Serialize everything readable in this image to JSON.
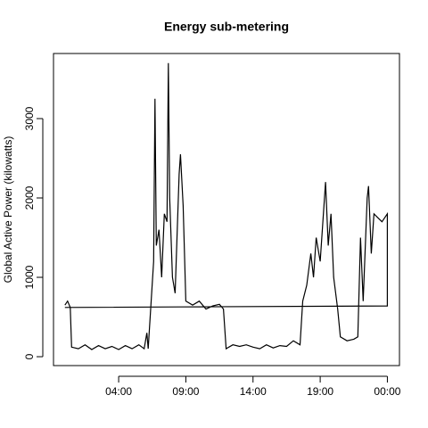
{
  "chart_data": {
    "type": "line",
    "title": "Energy sub-metering",
    "y_label": "Global Active Power (kilowatts)",
    "color": "#000000",
    "x": [
      0,
      0.2,
      0.4,
      0.5,
      1,
      1.5,
      2,
      2.5,
      3,
      3.5,
      4,
      4.5,
      5,
      5.5,
      5.9,
      6.1,
      6.2,
      6.6,
      6.7,
      6.8,
      7,
      7.2,
      7.4,
      7.6,
      7.7,
      7.8,
      8,
      8.2,
      8.5,
      8.6,
      8.8,
      9,
      9.5,
      10,
      10.5,
      11,
      11.5,
      11.8,
      12,
      12.5,
      13,
      13.5,
      14,
      14.5,
      15,
      15.5,
      16,
      16.5,
      17,
      17.5,
      17.7,
      18,
      18.3,
      18.5,
      18.7,
      19,
      19.2,
      19.4,
      19.6,
      19.8,
      20,
      20.3,
      20.5,
      21,
      21.5,
      21.8,
      22,
      22.2,
      22.5,
      22.6,
      22.8,
      23,
      23.3,
      23.6,
      24,
      24,
      0
    ],
    "values": [
      650,
      700,
      620,
      120,
      100,
      150,
      90,
      140,
      100,
      130,
      90,
      140,
      100,
      150,
      100,
      300,
      100,
      1200,
      3250,
      1400,
      1600,
      1000,
      1800,
      1700,
      3700,
      2000,
      1000,
      800,
      2300,
      2550,
      1900,
      700,
      650,
      700,
      600,
      640,
      660,
      600,
      100,
      150,
      130,
      150,
      120,
      100,
      150,
      110,
      140,
      130,
      200,
      150,
      700,
      900,
      1300,
      1000,
      1500,
      1200,
      1700,
      2200,
      1400,
      1800,
      1000,
      600,
      250,
      200,
      220,
      250,
      1500,
      700,
      2000,
      2150,
      1300,
      1800,
      1750,
      1700,
      1800,
      640,
      620
    ],
    "xlim": [
      -0.85,
      24.9
    ],
    "ylim": [
      -112,
      3820
    ],
    "xticks": [
      {
        "value": 4,
        "label": "04:00"
      },
      {
        "value": 9,
        "label": "09:00"
      },
      {
        "value": 14,
        "label": "14:00"
      },
      {
        "value": 19,
        "label": "19:00"
      },
      {
        "value": 24,
        "label": "00:00"
      }
    ],
    "yticks": [
      0,
      1000,
      2000,
      3000
    ]
  }
}
